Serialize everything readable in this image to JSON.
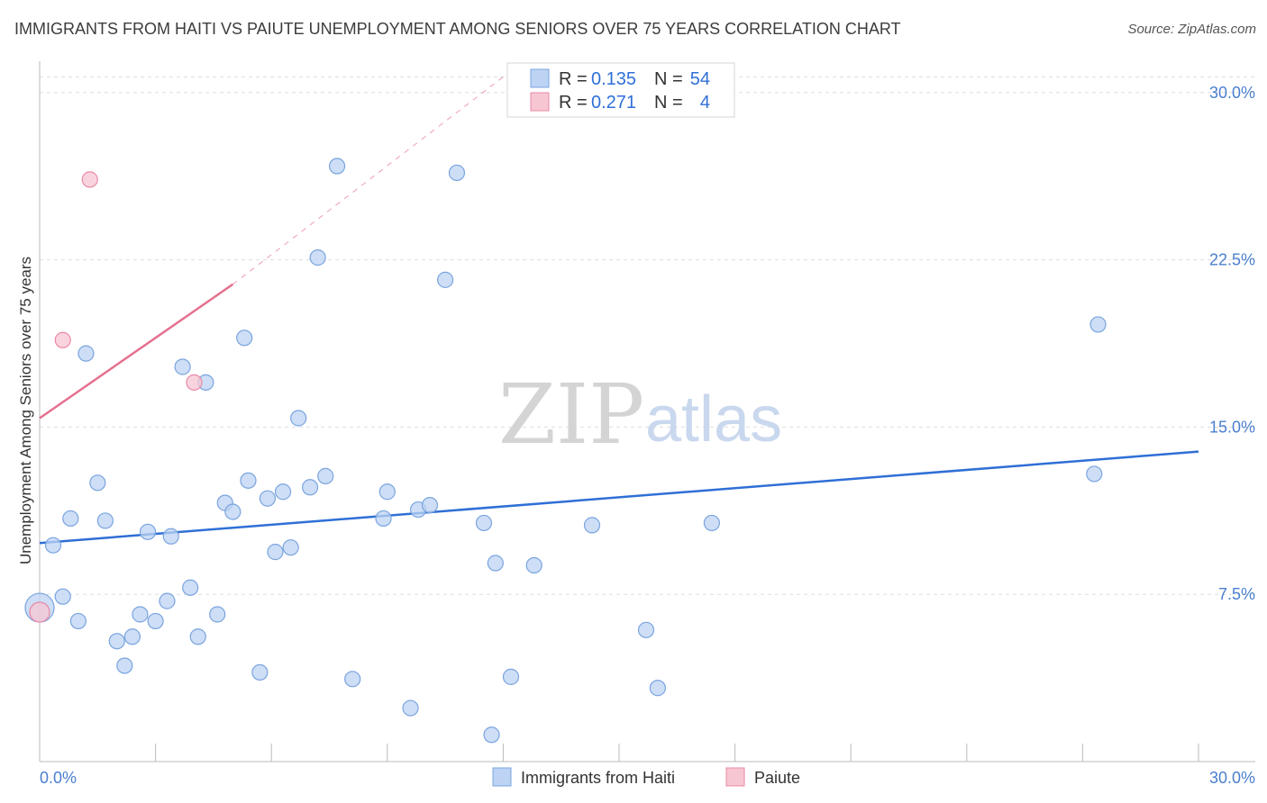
{
  "title": "IMMIGRANTS FROM HAITI VS PAIUTE UNEMPLOYMENT AMONG SENIORS OVER 75 YEARS CORRELATION CHART",
  "source": "Source: ZipAtlas.com",
  "watermark": {
    "zip": "ZIP",
    "atlas": "atlas"
  },
  "colors": {
    "haiti_fill": "#bcd3f3",
    "haiti_stroke": "#7aa4df",
    "haiti_line": "#2f6fd6",
    "paiute_fill": "#f7c6d3",
    "paiute_stroke": "#e98aa6",
    "paiute_line": "#e5708f",
    "grid": "#dddddd",
    "axis": "#bbbbbb",
    "tick_text": "#4a7fcf"
  },
  "legend": {
    "rows": [
      {
        "r_label": "R =",
        "r_value": "0.135",
        "n_label": "N =",
        "n_value": "54"
      },
      {
        "r_label": "R =",
        "r_value": "0.271",
        "n_label": "N =",
        "n_value": "4"
      }
    ]
  },
  "chart_data": {
    "type": "scatter",
    "title": "IMMIGRANTS FROM HAITI VS PAIUTE UNEMPLOYMENT AMONG SENIORS OVER 75 YEARS CORRELATION CHART",
    "xlabel": "",
    "ylabel": "Unemployment Among Seniors over 75 years",
    "xlim": [
      0,
      30
    ],
    "ylim": [
      0,
      31
    ],
    "x_tick_labels": [
      "0.0%",
      "30.0%"
    ],
    "y_ticks": [
      7.5,
      15.0,
      22.5,
      30.0
    ],
    "y_tick_labels": [
      "7.5%",
      "15.0%",
      "22.5%",
      "30.0%"
    ],
    "grid": true,
    "series": [
      {
        "name": "Immigrants from Haiti",
        "r": 0.135,
        "n": 54,
        "trend": {
          "x": [
            0,
            30
          ],
          "y": [
            9.8,
            13.9
          ]
        },
        "points": [
          [
            0.0,
            6.9
          ],
          [
            0.35,
            9.7
          ],
          [
            0.6,
            7.4
          ],
          [
            0.8,
            10.9
          ],
          [
            1.0,
            6.3
          ],
          [
            1.2,
            18.3
          ],
          [
            1.5,
            12.5
          ],
          [
            1.7,
            10.8
          ],
          [
            2.0,
            5.4
          ],
          [
            2.2,
            4.3
          ],
          [
            2.4,
            5.6
          ],
          [
            2.6,
            6.6
          ],
          [
            2.8,
            10.3
          ],
          [
            3.0,
            6.3
          ],
          [
            3.3,
            7.2
          ],
          [
            3.4,
            10.1
          ],
          [
            3.7,
            17.7
          ],
          [
            3.9,
            7.8
          ],
          [
            4.1,
            5.6
          ],
          [
            4.3,
            17.0
          ],
          [
            4.6,
            6.6
          ],
          [
            4.8,
            11.6
          ],
          [
            5.0,
            11.2
          ],
          [
            5.3,
            19.0
          ],
          [
            5.4,
            12.6
          ],
          [
            5.7,
            4.0
          ],
          [
            5.9,
            11.8
          ],
          [
            6.1,
            9.4
          ],
          [
            6.3,
            12.1
          ],
          [
            6.5,
            9.6
          ],
          [
            6.7,
            15.4
          ],
          [
            7.0,
            12.3
          ],
          [
            7.2,
            22.6
          ],
          [
            7.4,
            12.8
          ],
          [
            7.7,
            26.7
          ],
          [
            8.1,
            3.7
          ],
          [
            8.9,
            10.9
          ],
          [
            9.0,
            12.1
          ],
          [
            9.6,
            2.4
          ],
          [
            9.8,
            11.3
          ],
          [
            10.1,
            11.5
          ],
          [
            10.5,
            21.6
          ],
          [
            10.8,
            26.4
          ],
          [
            11.5,
            10.7
          ],
          [
            11.7,
            1.2
          ],
          [
            11.8,
            8.9
          ],
          [
            12.2,
            3.8
          ],
          [
            12.8,
            8.8
          ],
          [
            14.3,
            10.6
          ],
          [
            15.7,
            5.9
          ],
          [
            16.0,
            3.3
          ],
          [
            17.4,
            10.7
          ],
          [
            27.3,
            12.9
          ],
          [
            27.4,
            19.6
          ]
        ]
      },
      {
        "name": "Paiute",
        "r": 0.271,
        "n": 4,
        "trend": {
          "x": [
            0,
            5.0
          ],
          "y": [
            15.4,
            21.4
          ]
        },
        "trend_extension": {
          "x": [
            5.0,
            12.0
          ],
          "y": [
            21.4,
            30.7
          ]
        },
        "points": [
          [
            0.0,
            6.7
          ],
          [
            0.6,
            18.9
          ],
          [
            1.3,
            26.1
          ],
          [
            4.0,
            17.0
          ]
        ]
      }
    ]
  },
  "bottom_legend": [
    {
      "label": "Immigrants from Haiti"
    },
    {
      "label": "Paiute"
    }
  ]
}
